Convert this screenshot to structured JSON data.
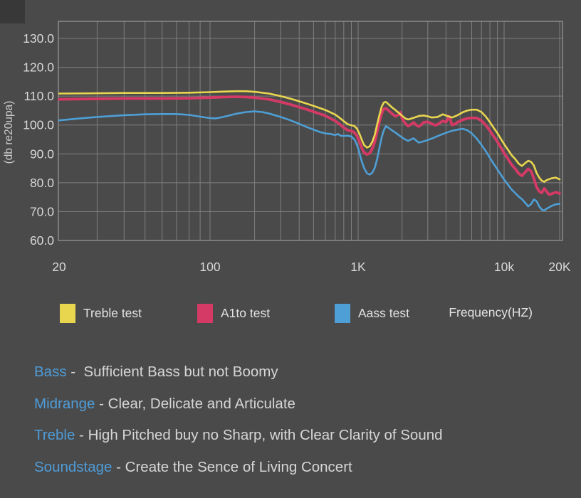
{
  "colors": {
    "background": "#4a4a4a",
    "grid": "#7f7f7f",
    "border": "#9b9b9b",
    "tick_text": "#d8d8d8",
    "keyword_blue": "#4f9cd8",
    "note_text": "#d6d6d6"
  },
  "chart_data": {
    "type": "line",
    "title": "",
    "xlabel": "Frequency(HZ)",
    "ylabel": "(db re20upa)",
    "x_scale": "log",
    "xlim": [
      20,
      20000
    ],
    "ylim": [
      60,
      135.9
    ],
    "grid": true,
    "legend_position": "bottom",
    "y_ticks": [
      {
        "v": 130,
        "label": "130.0"
      },
      {
        "v": 120,
        "label": "120.0"
      },
      {
        "v": 110,
        "label": "110.0"
      },
      {
        "v": 100,
        "label": "100.0"
      },
      {
        "v": 90,
        "label": "90.0"
      },
      {
        "v": 80,
        "label": "80.0"
      },
      {
        "v": 70,
        "label": "70.0"
      },
      {
        "v": 60,
        "label": "60.0"
      }
    ],
    "x_ticks": [
      {
        "f": 20,
        "label": "20"
      },
      {
        "f": 100,
        "label": "100"
      },
      {
        "f": 1000,
        "label": "1K"
      },
      {
        "f": 10000,
        "label": "10k"
      },
      {
        "f": 20000,
        "label": "20K"
      }
    ],
    "series": [
      {
        "name": "Treble test",
        "color": "#e9d64f",
        "width": 2.6,
        "points": [
          [
            20,
            110.9
          ],
          [
            30,
            111.0
          ],
          [
            40,
            111.1
          ],
          [
            50,
            111.1
          ],
          [
            60,
            111.1
          ],
          [
            80,
            111.2
          ],
          [
            100,
            111.4
          ],
          [
            125,
            111.6
          ],
          [
            150,
            111.7
          ],
          [
            175,
            111.7
          ],
          [
            200,
            111.5
          ],
          [
            250,
            110.9
          ],
          [
            300,
            110.0
          ],
          [
            350,
            109.1
          ],
          [
            400,
            108.2
          ],
          [
            450,
            107.4
          ],
          [
            500,
            106.6
          ],
          [
            550,
            105.9
          ],
          [
            600,
            105.2
          ],
          [
            650,
            104.4
          ],
          [
            700,
            103.6
          ],
          [
            750,
            102.5
          ],
          [
            800,
            101.3
          ],
          [
            850,
            100.3
          ],
          [
            900,
            99.9
          ],
          [
            940,
            99.7
          ],
          [
            980,
            98.8
          ],
          [
            1020,
            97.0
          ],
          [
            1060,
            94.8
          ],
          [
            1100,
            93.0
          ],
          [
            1150,
            92.2
          ],
          [
            1200,
            92.6
          ],
          [
            1250,
            94.2
          ],
          [
            1300,
            96.6
          ],
          [
            1350,
            100.2
          ],
          [
            1400,
            103.6
          ],
          [
            1450,
            106.4
          ],
          [
            1500,
            107.8
          ],
          [
            1550,
            108.0
          ],
          [
            1600,
            107.4
          ],
          [
            1700,
            106.2
          ],
          [
            1800,
            105.2
          ],
          [
            1900,
            104.2
          ],
          [
            2000,
            103.2
          ],
          [
            2100,
            102.3
          ],
          [
            2200,
            101.9
          ],
          [
            2400,
            102.5
          ],
          [
            2600,
            103.1
          ],
          [
            2800,
            103.3
          ],
          [
            3000,
            103.0
          ],
          [
            3200,
            102.6
          ],
          [
            3500,
            102.8
          ],
          [
            3800,
            103.7
          ],
          [
            4100,
            103.1
          ],
          [
            4400,
            102.6
          ],
          [
            4800,
            103.4
          ],
          [
            5200,
            104.4
          ],
          [
            5600,
            105.0
          ],
          [
            6000,
            105.3
          ],
          [
            6500,
            105.3
          ],
          [
            7000,
            104.5
          ],
          [
            7500,
            102.9
          ],
          [
            8000,
            101.0
          ],
          [
            8500,
            99.0
          ],
          [
            9000,
            97.2
          ],
          [
            9500,
            95.2
          ],
          [
            10000,
            93.4
          ],
          [
            10500,
            91.4
          ],
          [
            11000,
            89.5
          ],
          [
            11500,
            88.2
          ],
          [
            12000,
            86.6
          ],
          [
            12500,
            85.8
          ],
          [
            13000,
            86.8
          ],
          [
            13500,
            87.6
          ],
          [
            14000,
            87.2
          ],
          [
            14500,
            86.0
          ],
          [
            15000,
            83.4
          ],
          [
            15500,
            81.8
          ],
          [
            16000,
            80.7
          ],
          [
            16500,
            80.3
          ],
          [
            17000,
            80.9
          ],
          [
            18000,
            81.5
          ],
          [
            19000,
            81.8
          ],
          [
            20000,
            81.2
          ]
        ]
      },
      {
        "name": "A1to test",
        "color": "#d53a66",
        "width": 3.8,
        "points": [
          [
            20,
            108.9
          ],
          [
            30,
            109.1
          ],
          [
            40,
            109.2
          ],
          [
            50,
            109.2
          ],
          [
            60,
            109.2
          ],
          [
            80,
            109.3
          ],
          [
            100,
            109.5
          ],
          [
            125,
            109.7
          ],
          [
            150,
            109.8
          ],
          [
            175,
            109.7
          ],
          [
            200,
            109.5
          ],
          [
            250,
            108.9
          ],
          [
            300,
            108.0
          ],
          [
            350,
            107.1
          ],
          [
            400,
            106.2
          ],
          [
            450,
            105.4
          ],
          [
            500,
            104.6
          ],
          [
            550,
            103.9
          ],
          [
            600,
            103.2
          ],
          [
            650,
            102.3
          ],
          [
            700,
            101.4
          ],
          [
            750,
            100.3
          ],
          [
            800,
            99.1
          ],
          [
            850,
            98.2
          ],
          [
            900,
            97.9
          ],
          [
            940,
            97.5
          ],
          [
            980,
            96.3
          ],
          [
            1020,
            94.3
          ],
          [
            1060,
            92.0
          ],
          [
            1100,
            90.4
          ],
          [
            1150,
            89.8
          ],
          [
            1200,
            90.2
          ],
          [
            1250,
            91.8
          ],
          [
            1300,
            94.2
          ],
          [
            1350,
            97.7
          ],
          [
            1400,
            101.2
          ],
          [
            1450,
            104.0
          ],
          [
            1500,
            105.6
          ],
          [
            1550,
            105.8
          ],
          [
            1600,
            105.2
          ],
          [
            1700,
            104.0
          ],
          [
            1800,
            103.0
          ],
          [
            1900,
            103.6
          ],
          [
            1950,
            104.4
          ],
          [
            2000,
            102.2
          ],
          [
            2100,
            100.6
          ],
          [
            2200,
            99.6
          ],
          [
            2300,
            100.2
          ],
          [
            2400,
            100.9
          ],
          [
            2500,
            100.0
          ],
          [
            2600,
            99.5
          ],
          [
            2700,
            100.0
          ],
          [
            2800,
            100.9
          ],
          [
            3000,
            101.1
          ],
          [
            3200,
            100.4
          ],
          [
            3400,
            99.9
          ],
          [
            3600,
            100.6
          ],
          [
            3800,
            101.4
          ],
          [
            4000,
            101.0
          ],
          [
            4200,
            103.0
          ],
          [
            4400,
            100.0
          ],
          [
            4600,
            100.3
          ],
          [
            4800,
            101.0
          ],
          [
            5200,
            101.8
          ],
          [
            5600,
            102.3
          ],
          [
            6000,
            102.5
          ],
          [
            6500,
            102.4
          ],
          [
            7000,
            101.5
          ],
          [
            7500,
            99.9
          ],
          [
            8000,
            98.0
          ],
          [
            8500,
            96.0
          ],
          [
            9000,
            94.2
          ],
          [
            9500,
            92.2
          ],
          [
            10000,
            90.3
          ],
          [
            10500,
            88.2
          ],
          [
            11000,
            86.2
          ],
          [
            11500,
            84.8
          ],
          [
            12000,
            83.2
          ],
          [
            12500,
            82.4
          ],
          [
            13000,
            83.6
          ],
          [
            13500,
            84.8
          ],
          [
            14000,
            84.0
          ],
          [
            14500,
            81.5
          ],
          [
            15000,
            78.5
          ],
          [
            15500,
            77.0
          ],
          [
            16000,
            76.5
          ],
          [
            16500,
            78.0
          ],
          [
            17000,
            77.0
          ],
          [
            17500,
            75.9
          ],
          [
            18000,
            76.1
          ],
          [
            19000,
            76.7
          ],
          [
            20000,
            76.3
          ]
        ]
      },
      {
        "name": "Aass test",
        "color": "#4e9fd6",
        "width": 2.6,
        "points": [
          [
            20,
            101.6
          ],
          [
            25,
            102.3
          ],
          [
            30,
            102.8
          ],
          [
            40,
            103.4
          ],
          [
            50,
            103.7
          ],
          [
            60,
            103.8
          ],
          [
            70,
            103.8
          ],
          [
            80,
            103.5
          ],
          [
            90,
            102.9
          ],
          [
            100,
            102.4
          ],
          [
            110,
            102.3
          ],
          [
            125,
            102.9
          ],
          [
            150,
            103.9
          ],
          [
            175,
            104.5
          ],
          [
            200,
            104.7
          ],
          [
            225,
            104.5
          ],
          [
            250,
            104.0
          ],
          [
            300,
            102.8
          ],
          [
            350,
            101.6
          ],
          [
            400,
            100.4
          ],
          [
            450,
            99.3
          ],
          [
            500,
            98.4
          ],
          [
            550,
            97.6
          ],
          [
            600,
            97.1
          ],
          [
            650,
            96.9
          ],
          [
            700,
            96.5
          ],
          [
            730,
            96.9
          ],
          [
            760,
            96.3
          ],
          [
            800,
            96.2
          ],
          [
            850,
            96.3
          ],
          [
            900,
            96.0
          ],
          [
            950,
            94.8
          ],
          [
            1000,
            92.0
          ],
          [
            1050,
            88.0
          ],
          [
            1100,
            85.0
          ],
          [
            1150,
            83.3
          ],
          [
            1200,
            82.8
          ],
          [
            1250,
            83.5
          ],
          [
            1300,
            85.2
          ],
          [
            1350,
            88.2
          ],
          [
            1400,
            92.2
          ],
          [
            1450,
            95.8
          ],
          [
            1500,
            98.2
          ],
          [
            1550,
            99.6
          ],
          [
            1600,
            99.2
          ],
          [
            1700,
            98.2
          ],
          [
            1800,
            97.4
          ],
          [
            1900,
            96.5
          ],
          [
            2000,
            95.7
          ],
          [
            2100,
            95.0
          ],
          [
            2200,
            94.5
          ],
          [
            2300,
            95.0
          ],
          [
            2400,
            95.4
          ],
          [
            2500,
            94.6
          ],
          [
            2600,
            93.9
          ],
          [
            2800,
            94.3
          ],
          [
            3000,
            94.8
          ],
          [
            3300,
            95.6
          ],
          [
            3600,
            96.4
          ],
          [
            4000,
            97.3
          ],
          [
            4400,
            98.0
          ],
          [
            4800,
            98.4
          ],
          [
            5200,
            98.7
          ],
          [
            5600,
            98.2
          ],
          [
            6000,
            97.1
          ],
          [
            6500,
            95.3
          ],
          [
            7000,
            93.1
          ],
          [
            7500,
            90.9
          ],
          [
            8000,
            88.6
          ],
          [
            8500,
            86.5
          ],
          [
            9000,
            84.6
          ],
          [
            9500,
            82.8
          ],
          [
            10000,
            81.1
          ],
          [
            10500,
            79.3
          ],
          [
            11000,
            77.6
          ],
          [
            11500,
            76.4
          ],
          [
            12000,
            75.2
          ],
          [
            12500,
            74.3
          ],
          [
            13000,
            73.1
          ],
          [
            13500,
            71.8
          ],
          [
            14000,
            72.6
          ],
          [
            14500,
            74.2
          ],
          [
            15000,
            73.6
          ],
          [
            15500,
            71.8
          ],
          [
            16000,
            70.7
          ],
          [
            16500,
            70.4
          ],
          [
            17000,
            71.0
          ],
          [
            18000,
            71.9
          ],
          [
            19000,
            72.5
          ],
          [
            20000,
            72.7
          ]
        ]
      }
    ]
  },
  "notes": [
    {
      "keyword": "Bass",
      "text": " -  Sufficient Bass but not Boomy"
    },
    {
      "keyword": "Midrange",
      "text": " - Clear, Delicate and Articulate"
    },
    {
      "keyword": "Treble",
      "text": " - High Pitched buy no Sharp, with Clear Clarity of Sound"
    },
    {
      "keyword": "Soundstage",
      "text": " - Create the Sence of Living Concert"
    }
  ]
}
